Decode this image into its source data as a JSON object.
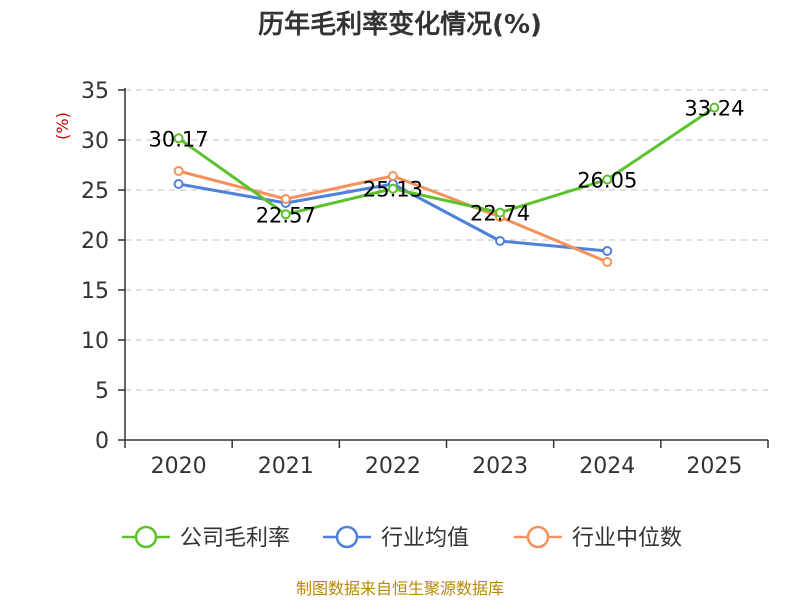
{
  "chart_data": {
    "type": "line",
    "title": "历年毛利率变化情况(%)",
    "ylabel": "(%)",
    "xlabel": "",
    "categories": [
      "2020",
      "2021",
      "2022",
      "2023",
      "2024",
      "2025"
    ],
    "ylim": [
      0,
      35
    ],
    "yticks": [
      0,
      5,
      10,
      15,
      20,
      25,
      30,
      35
    ],
    "grid": true,
    "legend_position": "bottom",
    "series": [
      {
        "name": "公司毛利率",
        "color": "#5cc22b",
        "values": [
          30.17,
          22.57,
          25.13,
          22.74,
          26.05,
          33.24
        ],
        "labels": [
          "30.17",
          "22.57",
          "25.13",
          "22.74",
          "26.05",
          "33.24"
        ]
      },
      {
        "name": "行业均值",
        "color": "#4f81d9",
        "values": [
          25.6,
          23.7,
          25.6,
          19.9,
          18.9,
          null
        ]
      },
      {
        "name": "行业中位数",
        "color": "#f4915c",
        "values": [
          26.9,
          24.1,
          26.4,
          22.3,
          17.8,
          null
        ]
      }
    ]
  },
  "source_text": "制图数据来自恒生聚源数据库"
}
